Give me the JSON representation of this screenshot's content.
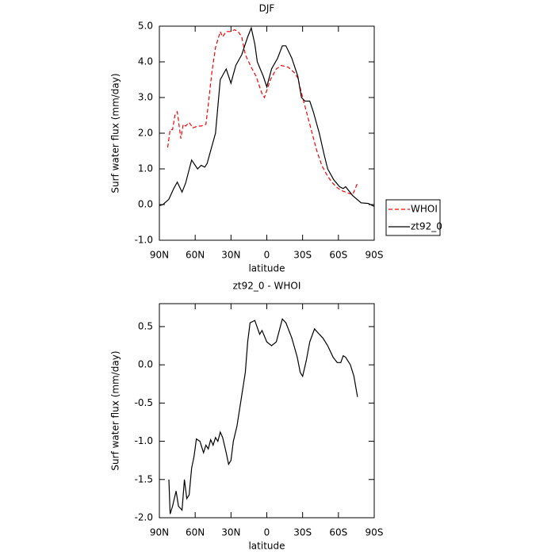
{
  "chart_data": [
    {
      "type": "line",
      "title": "DJF",
      "xlabel": "latitude",
      "ylabel": "Surf water flux (mm/day)",
      "xlim": [
        90,
        -90
      ],
      "ylim": [
        -1,
        5
      ],
      "xticks": [
        {
          "value": 90,
          "label": "90N"
        },
        {
          "value": 60,
          "label": "60N"
        },
        {
          "value": 30,
          "label": "30N"
        },
        0,
        {
          "value": -30,
          "label": "30S"
        },
        {
          "value": -60,
          "label": "60S"
        },
        {
          "value": -90,
          "label": "90S"
        }
      ],
      "yticks": [
        {
          "value": -1,
          "label": "-1.0"
        },
        {
          "value": 0,
          "label": "0.0"
        },
        {
          "value": 1,
          "label": "1.0"
        },
        {
          "value": 2,
          "label": "2.0"
        },
        {
          "value": 3,
          "label": "3.0"
        },
        {
          "value": 4,
          "label": "4.0"
        },
        {
          "value": 5,
          "label": "5.0"
        }
      ],
      "legend": "right",
      "series": [
        {
          "name": "WHOI",
          "color": "#ff0000",
          "linestyle": "dashed",
          "x": [
            83,
            81,
            79,
            77,
            75,
            72,
            70,
            68,
            65,
            62,
            58,
            55,
            51,
            49,
            46,
            43,
            39,
            37,
            34,
            30,
            27,
            24,
            21,
            18,
            13,
            9,
            4,
            2,
            -3,
            -8,
            -12,
            -18,
            -23,
            -26,
            -30,
            -34,
            -38,
            -42,
            -46,
            -50,
            -54,
            -58,
            -62,
            -66,
            -70,
            -72,
            -76
          ],
          "values": [
            1.6,
            2.1,
            2.1,
            2.5,
            2.6,
            1.85,
            2.25,
            2.2,
            2.3,
            2.15,
            2.2,
            2.2,
            2.25,
            2.8,
            3.7,
            4.4,
            4.85,
            4.7,
            4.85,
            4.85,
            4.9,
            4.85,
            4.7,
            4.2,
            3.85,
            3.6,
            3.1,
            3.0,
            3.5,
            3.8,
            3.9,
            3.85,
            3.7,
            3.55,
            3.0,
            2.5,
            2.0,
            1.5,
            1.1,
            0.85,
            0.65,
            0.5,
            0.4,
            0.35,
            0.3,
            0.28,
            0.6
          ]
        },
        {
          "name": "zt92_0",
          "color": "#000000",
          "linestyle": "solid",
          "x": [
            90,
            87,
            82,
            78,
            75,
            71,
            68,
            63,
            61,
            58,
            55,
            52,
            50,
            43,
            39,
            34,
            30,
            26,
            21,
            16,
            13,
            10,
            8,
            3,
            0,
            -4,
            -9,
            -13,
            -16,
            -21,
            -26,
            -29,
            -32,
            -36,
            -39,
            -44,
            -48,
            -51,
            -56,
            -61,
            -64,
            -66,
            -72,
            -79,
            -85,
            -90
          ],
          "values": [
            -0.03,
            0.0,
            0.15,
            0.45,
            0.63,
            0.35,
            0.6,
            1.25,
            1.15,
            1.0,
            1.1,
            1.05,
            1.15,
            2.0,
            3.5,
            3.8,
            3.4,
            3.9,
            4.2,
            4.7,
            4.95,
            4.5,
            4.0,
            3.6,
            3.3,
            3.8,
            4.1,
            4.45,
            4.45,
            4.1,
            3.6,
            3.0,
            2.9,
            2.9,
            2.6,
            2.0,
            1.4,
            1.0,
            0.7,
            0.5,
            0.45,
            0.5,
            0.25,
            0.05,
            0.03,
            -0.05
          ]
        }
      ]
    },
    {
      "type": "line",
      "title": "zt92_0 - WHOI",
      "xlabel": "latitude",
      "ylabel": "Surf water flux (mm/day)",
      "xlim": [
        90,
        -90
      ],
      "ylim": [
        -2,
        0.8
      ],
      "xticks": [
        {
          "value": 90,
          "label": "90N"
        },
        {
          "value": 60,
          "label": "60N"
        },
        {
          "value": 30,
          "label": "30N"
        },
        0,
        {
          "value": -30,
          "label": "30S"
        },
        {
          "value": -60,
          "label": "60S"
        },
        {
          "value": -90,
          "label": "90S"
        }
      ],
      "yticks": [
        {
          "value": -2,
          "label": "-2.0"
        },
        -1.5,
        {
          "value": -1,
          "label": "-1.0"
        },
        -0.5,
        {
          "value": 0,
          "label": "0.0"
        },
        0.5
      ],
      "series": [
        {
          "color": "#000000",
          "linestyle": "solid",
          "x": [
            82,
            81,
            79,
            76,
            74,
            71,
            69,
            67,
            65,
            63,
            61,
            59,
            56,
            53,
            51,
            49,
            47,
            45,
            43,
            41,
            39,
            37,
            34,
            32,
            30,
            28,
            25,
            22,
            18,
            16,
            14,
            10,
            6,
            4,
            0,
            -4,
            -8,
            -13,
            -16,
            -21,
            -25.5,
            -28,
            -30,
            -33,
            -36,
            -40,
            -44,
            -47,
            -51,
            -55.5,
            -59,
            -62,
            -64,
            -66,
            -70,
            -73,
            -76
          ],
          "values": [
            -1.5,
            -1.95,
            -1.85,
            -1.65,
            -1.85,
            -1.9,
            -1.5,
            -1.75,
            -1.7,
            -1.35,
            -1.2,
            -0.97,
            -1.0,
            -1.15,
            -1.05,
            -1.1,
            -0.98,
            -1.05,
            -0.95,
            -1.0,
            -0.88,
            -0.95,
            -1.15,
            -1.3,
            -1.25,
            -1.0,
            -0.8,
            -0.5,
            -0.1,
            0.3,
            0.55,
            0.58,
            0.4,
            0.45,
            0.3,
            0.25,
            0.3,
            0.6,
            0.55,
            0.35,
            0.1,
            -0.1,
            -0.15,
            0.05,
            0.3,
            0.47,
            0.4,
            0.35,
            0.25,
            0.1,
            0.03,
            0.03,
            0.12,
            0.1,
            0.0,
            -0.15,
            -0.42
          ]
        }
      ]
    }
  ]
}
